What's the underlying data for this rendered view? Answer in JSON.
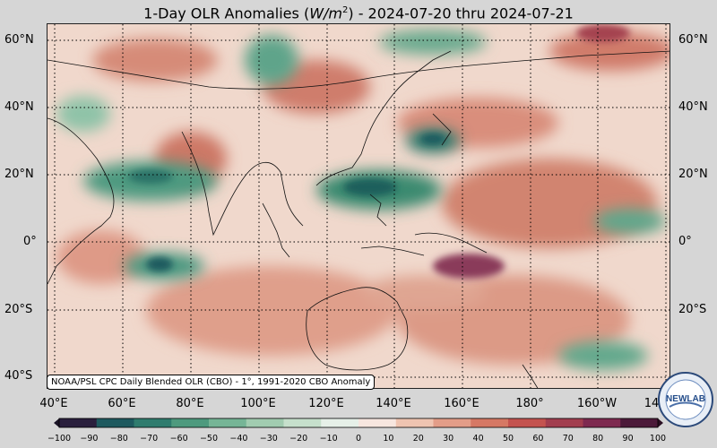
{
  "title": {
    "prefix": "1-Day OLR Anomalies (",
    "unit_var": "W/m",
    "unit_exp": "2",
    "suffix": ") - 2024-07-20 thru 2024-07-21"
  },
  "map_extent": {
    "lon_min": 40,
    "lon_max": 220,
    "lat_min": -42,
    "lat_max": 66
  },
  "latitude_labels": [
    "60°N",
    "40°N",
    "20°N",
    "0°",
    "20°S",
    "40°S"
  ],
  "longitude_labels": [
    "40°E",
    "60°E",
    "80°E",
    "100°E",
    "120°E",
    "140°E",
    "160°E",
    "180°",
    "160°W",
    "14"
  ],
  "caption": "NOAA/PSL CPC Daily Blended OLR (CBO) - 1°, 1991-2020 CBO Anomaly",
  "colorbar": {
    "ticks": [
      "−100",
      "−90",
      "−80",
      "−70",
      "−60",
      "−50",
      "−40",
      "−30",
      "−20",
      "−10",
      "0",
      "10",
      "20",
      "30",
      "40",
      "50",
      "60",
      "70",
      "80",
      "90",
      "100"
    ],
    "colors_negative": [
      "#2a1f3d",
      "#1e5a5f",
      "#2f7c6e",
      "#4e9a7e",
      "#76b596",
      "#a1ccb0",
      "#c6e0cc",
      "#e6f0e8"
    ],
    "colors_positive": [
      "#f7e6df",
      "#efc4b1",
      "#e39d88",
      "#d67864",
      "#c4534f",
      "#a23e4f",
      "#7e2a50",
      "#4c1a3a"
    ]
  },
  "logo": {
    "text": "NEWLAB",
    "ring_text": "PHYSICAL SCIENCES LABORATORY"
  },
  "colors": {
    "background": "#d6d6d6",
    "map_base": "#f0d8cc",
    "green_anomaly": "#2f8a6c",
    "red_anomaly": "#c97a6a",
    "purple_anomaly": "#7a2c56"
  }
}
